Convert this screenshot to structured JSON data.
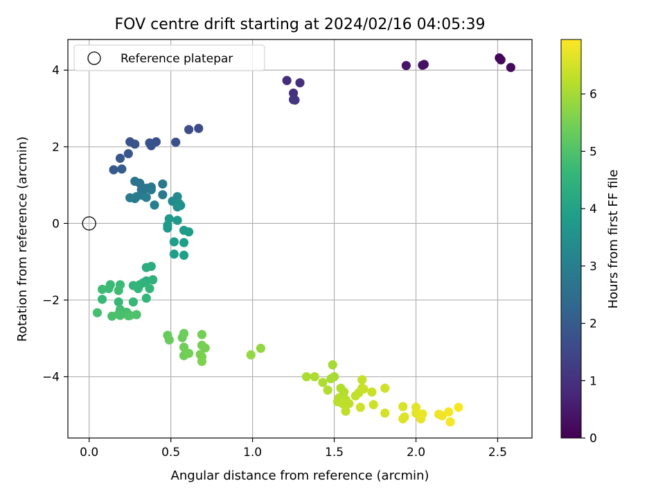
{
  "chart_data": {
    "type": "scatter",
    "title": "FOV centre drift starting at 2024/02/16 04:05:39",
    "xlabel": "Angular distance from reference (arcmin)",
    "ylabel": "Rotation from reference (arcmin)",
    "xlim": [
      -0.13,
      2.71
    ],
    "ylim": [
      -5.6,
      4.8
    ],
    "xticks": [
      0.0,
      0.5,
      1.0,
      1.5,
      2.0,
      2.5
    ],
    "xtick_labels": [
      "0.0",
      "0.5",
      "1.0",
      "1.5",
      "2.0",
      "2.5"
    ],
    "yticks": [
      -4,
      -2,
      0,
      2,
      4
    ],
    "ytick_labels": [
      "−4",
      "−2",
      "0",
      "2",
      "4"
    ],
    "grid": true,
    "legend": {
      "location": "upper left",
      "entries": [
        "Reference platepar"
      ]
    },
    "reference_point": {
      "x": 0.0,
      "y": 0.0,
      "marker": "open-circle"
    },
    "colorbar": {
      "label": "Hours from first FF file",
      "range": [
        0,
        6.95
      ],
      "ticks": [
        0,
        1,
        2,
        3,
        4,
        5,
        6
      ],
      "tick_labels": [
        "0",
        "1",
        "2",
        "3",
        "4",
        "5",
        "6"
      ],
      "colormap": "viridis"
    },
    "colormap_stops": [
      "#440154",
      "#482878",
      "#3e4989",
      "#31688e",
      "#26828e",
      "#1f9e89",
      "#35b779",
      "#6ece58",
      "#b5de2b",
      "#fde725"
    ],
    "points": [
      {
        "x": 2.51,
        "y": 4.32,
        "c": 0.05
      },
      {
        "x": 2.52,
        "y": 4.27,
        "c": 0.12
      },
      {
        "x": 2.58,
        "y": 4.07,
        "c": 0.2
      },
      {
        "x": 2.04,
        "y": 4.13,
        "c": 0.28
      },
      {
        "x": 2.05,
        "y": 4.15,
        "c": 0.33
      },
      {
        "x": 1.94,
        "y": 4.12,
        "c": 0.4
      },
      {
        "x": 1.21,
        "y": 3.73,
        "c": 0.9
      },
      {
        "x": 1.29,
        "y": 3.67,
        "c": 0.95
      },
      {
        "x": 1.25,
        "y": 3.4,
        "c": 1.0
      },
      {
        "x": 1.25,
        "y": 3.23,
        "c": 1.05
      },
      {
        "x": 1.26,
        "y": 3.22,
        "c": 1.1
      },
      {
        "x": 0.67,
        "y": 2.48,
        "c": 1.6
      },
      {
        "x": 0.61,
        "y": 2.45,
        "c": 1.65
      },
      {
        "x": 0.53,
        "y": 2.12,
        "c": 1.7
      },
      {
        "x": 0.41,
        "y": 2.13,
        "c": 1.72
      },
      {
        "x": 0.37,
        "y": 2.1,
        "c": 1.75
      },
      {
        "x": 0.38,
        "y": 2.03,
        "c": 1.78
      },
      {
        "x": 0.25,
        "y": 2.13,
        "c": 1.8
      },
      {
        "x": 0.28,
        "y": 2.07,
        "c": 1.83
      },
      {
        "x": 0.24,
        "y": 1.82,
        "c": 1.86
      },
      {
        "x": 0.19,
        "y": 1.7,
        "c": 1.9
      },
      {
        "x": 0.15,
        "y": 1.4,
        "c": 1.95
      },
      {
        "x": 0.2,
        "y": 1.42,
        "c": 2.0
      },
      {
        "x": 0.28,
        "y": 1.1,
        "c": 2.6
      },
      {
        "x": 0.31,
        "y": 1.05,
        "c": 2.65
      },
      {
        "x": 0.32,
        "y": 0.88,
        "c": 2.7
      },
      {
        "x": 0.35,
        "y": 0.92,
        "c": 2.72
      },
      {
        "x": 0.38,
        "y": 0.95,
        "c": 2.75
      },
      {
        "x": 0.38,
        "y": 0.88,
        "c": 2.78
      },
      {
        "x": 0.45,
        "y": 1.03,
        "c": 2.8
      },
      {
        "x": 0.45,
        "y": 0.75,
        "c": 2.83
      },
      {
        "x": 0.33,
        "y": 0.73,
        "c": 2.85
      },
      {
        "x": 0.29,
        "y": 0.7,
        "c": 2.88
      },
      {
        "x": 0.25,
        "y": 0.67,
        "c": 2.9
      },
      {
        "x": 0.28,
        "y": 0.65,
        "c": 2.92
      },
      {
        "x": 0.35,
        "y": 0.68,
        "c": 2.95
      },
      {
        "x": 0.4,
        "y": 0.48,
        "c": 3.0
      },
      {
        "x": 0.51,
        "y": 0.58,
        "c": 3.3
      },
      {
        "x": 0.54,
        "y": 0.7,
        "c": 3.35
      },
      {
        "x": 0.55,
        "y": 0.52,
        "c": 3.4
      },
      {
        "x": 0.56,
        "y": 0.47,
        "c": 3.45
      },
      {
        "x": 0.54,
        "y": 0.43,
        "c": 3.5
      },
      {
        "x": 0.49,
        "y": 0.12,
        "c": 3.7
      },
      {
        "x": 0.54,
        "y": 0.08,
        "c": 3.72
      },
      {
        "x": 0.48,
        "y": -0.05,
        "c": 3.75
      },
      {
        "x": 0.48,
        "y": -0.12,
        "c": 3.78
      },
      {
        "x": 0.58,
        "y": -0.18,
        "c": 3.8
      },
      {
        "x": 0.61,
        "y": -0.22,
        "c": 3.82
      },
      {
        "x": 0.52,
        "y": -0.48,
        "c": 3.85
      },
      {
        "x": 0.58,
        "y": -0.5,
        "c": 3.88
      },
      {
        "x": 0.52,
        "y": -0.8,
        "c": 3.9
      },
      {
        "x": 0.58,
        "y": -0.83,
        "c": 3.93
      },
      {
        "x": 0.38,
        "y": -1.12,
        "c": 4.3
      },
      {
        "x": 0.35,
        "y": -1.15,
        "c": 4.32
      },
      {
        "x": 0.35,
        "y": -1.5,
        "c": 4.4
      },
      {
        "x": 0.39,
        "y": -1.47,
        "c": 4.42
      },
      {
        "x": 0.33,
        "y": -1.55,
        "c": 4.45
      },
      {
        "x": 0.31,
        "y": -1.6,
        "c": 4.5
      },
      {
        "x": 0.27,
        "y": -1.62,
        "c": 4.52
      },
      {
        "x": 0.3,
        "y": -1.7,
        "c": 4.55
      },
      {
        "x": 0.37,
        "y": -1.7,
        "c": 4.57
      },
      {
        "x": 0.35,
        "y": -1.95,
        "c": 4.6
      },
      {
        "x": 0.27,
        "y": -2.05,
        "c": 4.62
      },
      {
        "x": 0.18,
        "y": -2.05,
        "c": 4.65
      },
      {
        "x": 0.08,
        "y": -1.98,
        "c": 4.67
      },
      {
        "x": 0.13,
        "y": -1.6,
        "c": 4.7
      },
      {
        "x": 0.19,
        "y": -1.6,
        "c": 4.72
      },
      {
        "x": 0.12,
        "y": -1.7,
        "c": 4.74
      },
      {
        "x": 0.08,
        "y": -1.72,
        "c": 4.76
      },
      {
        "x": 0.18,
        "y": -1.75,
        "c": 4.78
      },
      {
        "x": 0.19,
        "y": -2.25,
        "c": 4.8
      },
      {
        "x": 0.2,
        "y": -2.3,
        "c": 4.82
      },
      {
        "x": 0.23,
        "y": -2.32,
        "c": 4.84
      },
      {
        "x": 0.05,
        "y": -2.33,
        "c": 4.86
      },
      {
        "x": 0.18,
        "y": -2.37,
        "c": 4.88
      },
      {
        "x": 0.19,
        "y": -2.4,
        "c": 4.9
      },
      {
        "x": 0.14,
        "y": -2.42,
        "c": 4.92
      },
      {
        "x": 0.25,
        "y": -2.4,
        "c": 4.94
      },
      {
        "x": 0.29,
        "y": -2.38,
        "c": 4.96
      },
      {
        "x": 0.24,
        "y": -2.41,
        "c": 4.98
      },
      {
        "x": 0.48,
        "y": -2.92,
        "c": 5.3
      },
      {
        "x": 0.49,
        "y": -3.04,
        "c": 5.32
      },
      {
        "x": 0.57,
        "y": -2.98,
        "c": 5.35
      },
      {
        "x": 0.58,
        "y": -2.87,
        "c": 5.37
      },
      {
        "x": 0.58,
        "y": -3.23,
        "c": 5.4
      },
      {
        "x": 0.58,
        "y": -3.45,
        "c": 5.42
      },
      {
        "x": 0.61,
        "y": -3.39,
        "c": 5.44
      },
      {
        "x": 0.69,
        "y": -2.9,
        "c": 5.46
      },
      {
        "x": 0.69,
        "y": -3.18,
        "c": 5.48
      },
      {
        "x": 0.71,
        "y": -3.25,
        "c": 5.5
      },
      {
        "x": 0.68,
        "y": -3.42,
        "c": 5.52
      },
      {
        "x": 0.69,
        "y": -3.48,
        "c": 5.54
      },
      {
        "x": 0.69,
        "y": -3.6,
        "c": 5.56
      },
      {
        "x": 1.05,
        "y": -3.26,
        "c": 5.8
      },
      {
        "x": 0.99,
        "y": -3.43,
        "c": 5.82
      },
      {
        "x": 1.49,
        "y": -3.69,
        "c": 6.0
      },
      {
        "x": 1.5,
        "y": -4.0,
        "c": 6.02
      },
      {
        "x": 1.48,
        "y": -4.05,
        "c": 6.04
      },
      {
        "x": 1.33,
        "y": -4.0,
        "c": 6.06
      },
      {
        "x": 1.38,
        "y": -4.0,
        "c": 6.08
      },
      {
        "x": 1.43,
        "y": -4.15,
        "c": 6.1
      },
      {
        "x": 1.46,
        "y": -4.35,
        "c": 6.12
      },
      {
        "x": 1.54,
        "y": -4.3,
        "c": 6.14
      },
      {
        "x": 1.56,
        "y": -4.4,
        "c": 6.16
      },
      {
        "x": 1.53,
        "y": -4.55,
        "c": 6.18
      },
      {
        "x": 1.57,
        "y": -4.6,
        "c": 6.2
      },
      {
        "x": 1.52,
        "y": -4.65,
        "c": 6.22
      },
      {
        "x": 1.55,
        "y": -4.7,
        "c": 6.24
      },
      {
        "x": 1.59,
        "y": -4.7,
        "c": 6.26
      },
      {
        "x": 1.57,
        "y": -4.9,
        "c": 6.28
      },
      {
        "x": 1.63,
        "y": -4.5,
        "c": 6.3
      },
      {
        "x": 1.65,
        "y": -4.42,
        "c": 6.32
      },
      {
        "x": 1.67,
        "y": -4.08,
        "c": 6.34
      },
      {
        "x": 1.67,
        "y": -4.3,
        "c": 6.36
      },
      {
        "x": 1.68,
        "y": -4.32,
        "c": 6.38
      },
      {
        "x": 1.73,
        "y": -4.4,
        "c": 6.4
      },
      {
        "x": 1.66,
        "y": -4.8,
        "c": 6.42
      },
      {
        "x": 1.74,
        "y": -4.73,
        "c": 6.44
      },
      {
        "x": 1.81,
        "y": -4.3,
        "c": 6.46
      },
      {
        "x": 1.81,
        "y": -4.95,
        "c": 6.5
      },
      {
        "x": 1.92,
        "y": -4.78,
        "c": 6.55
      },
      {
        "x": 1.92,
        "y": -5.1,
        "c": 6.6
      },
      {
        "x": 1.93,
        "y": -5.05,
        "c": 6.62
      },
      {
        "x": 2.0,
        "y": -4.8,
        "c": 6.65
      },
      {
        "x": 2.0,
        "y": -4.95,
        "c": 6.68
      },
      {
        "x": 2.02,
        "y": -5.0,
        "c": 6.7
      },
      {
        "x": 2.03,
        "y": -5.1,
        "c": 6.72
      },
      {
        "x": 2.04,
        "y": -4.97,
        "c": 6.74
      },
      {
        "x": 2.14,
        "y": -4.98,
        "c": 6.78
      },
      {
        "x": 2.16,
        "y": -5.02,
        "c": 6.8
      },
      {
        "x": 2.2,
        "y": -4.92,
        "c": 6.83
      },
      {
        "x": 2.21,
        "y": -5.18,
        "c": 6.86
      },
      {
        "x": 2.26,
        "y": -4.8,
        "c": 6.9
      }
    ]
  }
}
